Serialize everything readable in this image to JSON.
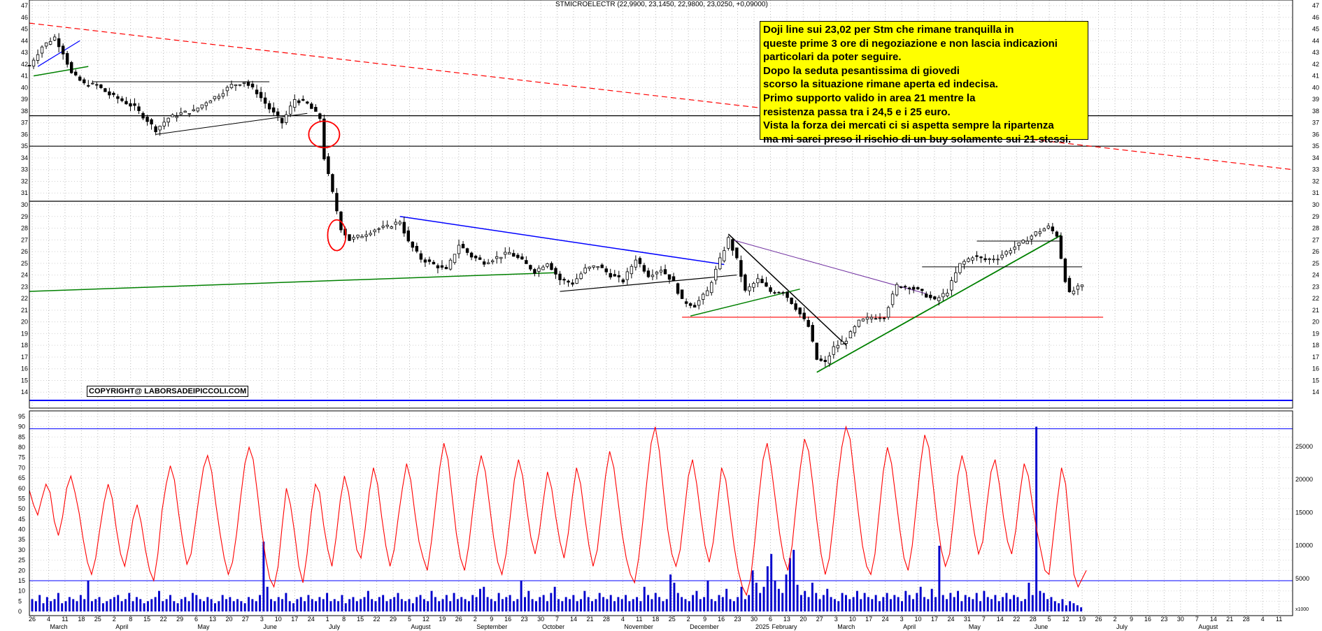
{
  "chart_data": [
    {
      "type": "candlestick",
      "title": "STMICROELECTR (22,9900, 23,1450, 22,9800, 23,0250, +0,09000)",
      "ylim": [
        13,
        47
      ],
      "y_ticks": [
        14,
        15,
        16,
        17,
        18,
        19,
        20,
        21,
        22,
        23,
        24,
        25,
        26,
        27,
        28,
        29,
        30,
        31,
        32,
        33,
        34,
        35,
        36,
        37,
        38,
        39,
        40,
        41,
        42,
        43,
        44,
        45,
        46,
        47
      ],
      "x_day_labels": [
        "26",
        "4",
        "11",
        "18",
        "25",
        "2",
        "8",
        "15",
        "22",
        "29",
        "6",
        "13",
        "20",
        "27",
        "3",
        "10",
        "17",
        "24",
        "1",
        "8",
        "15",
        "22",
        "29",
        "5",
        "12",
        "19",
        "26",
        "2",
        "9",
        "16",
        "23",
        "30",
        "7",
        "14",
        "21",
        "28",
        "4",
        "11",
        "18",
        "25",
        "2",
        "9",
        "16",
        "23",
        "30",
        "6",
        "13",
        "20",
        "27",
        "3",
        "10",
        "17",
        "24",
        "3",
        "10",
        "17",
        "24",
        "31",
        "7",
        "14",
        "22",
        "28",
        "5",
        "12",
        "19",
        "26",
        "2",
        "9",
        "16",
        "23",
        "30",
        "7",
        "14",
        "21",
        "28",
        "4",
        "11"
      ],
      "x_month_labels": [
        "March",
        "April",
        "May",
        "June",
        "July",
        "August",
        "September",
        "October",
        "November",
        "December",
        "2025",
        "February",
        "March",
        "April",
        "May",
        "June",
        "July",
        "August"
      ],
      "horizontal_levels": [
        {
          "value": 37.6,
          "color": "#000000"
        },
        {
          "value": 35.0,
          "color": "#000000"
        },
        {
          "value": 30.3,
          "color": "#000000"
        },
        {
          "value": 20.4,
          "color": "#ff0000"
        },
        {
          "value": 13.3,
          "color": "#0000ff"
        }
      ],
      "price_path": [
        {
          "x": 0,
          "y": 41.9
        },
        {
          "x": 3,
          "y": 43.5
        },
        {
          "x": 6,
          "y": 44.3
        },
        {
          "x": 8,
          "y": 43.0
        },
        {
          "x": 10,
          "y": 41.2
        },
        {
          "x": 13,
          "y": 40.3
        },
        {
          "x": 16,
          "y": 40.2
        },
        {
          "x": 19,
          "y": 39.4
        },
        {
          "x": 22,
          "y": 38.9
        },
        {
          "x": 25,
          "y": 38.3
        },
        {
          "x": 28,
          "y": 37.2
        },
        {
          "x": 30,
          "y": 36.4
        },
        {
          "x": 33,
          "y": 37.4
        },
        {
          "x": 36,
          "y": 37.8
        },
        {
          "x": 39,
          "y": 38.0
        },
        {
          "x": 42,
          "y": 38.8
        },
        {
          "x": 45,
          "y": 39.4
        },
        {
          "x": 48,
          "y": 40.2
        },
        {
          "x": 51,
          "y": 40.5
        },
        {
          "x": 54,
          "y": 39.6
        },
        {
          "x": 57,
          "y": 38.2
        },
        {
          "x": 60,
          "y": 37.0
        },
        {
          "x": 63,
          "y": 39.0
        },
        {
          "x": 66,
          "y": 38.6
        },
        {
          "x": 69,
          "y": 37.4
        },
        {
          "x": 70,
          "y": 34.0
        },
        {
          "x": 72,
          "y": 31.0
        },
        {
          "x": 74,
          "y": 28.0
        },
        {
          "x": 76,
          "y": 27.0
        },
        {
          "x": 79,
          "y": 27.4
        },
        {
          "x": 82,
          "y": 27.9
        },
        {
          "x": 85,
          "y": 28.1
        },
        {
          "x": 88,
          "y": 28.6
        },
        {
          "x": 90,
          "y": 26.8
        },
        {
          "x": 93,
          "y": 25.4
        },
        {
          "x": 96,
          "y": 24.9
        },
        {
          "x": 99,
          "y": 24.4
        },
        {
          "x": 102,
          "y": 26.6
        },
        {
          "x": 105,
          "y": 25.6
        },
        {
          "x": 108,
          "y": 25.1
        },
        {
          "x": 111,
          "y": 25.5
        },
        {
          "x": 114,
          "y": 25.9
        },
        {
          "x": 117,
          "y": 25.2
        },
        {
          "x": 120,
          "y": 24.3
        },
        {
          "x": 123,
          "y": 25.1
        },
        {
          "x": 126,
          "y": 23.6
        },
        {
          "x": 129,
          "y": 23.3
        },
        {
          "x": 132,
          "y": 24.5
        },
        {
          "x": 135,
          "y": 24.8
        },
        {
          "x": 138,
          "y": 24.0
        },
        {
          "x": 141,
          "y": 23.5
        },
        {
          "x": 144,
          "y": 25.4
        },
        {
          "x": 147,
          "y": 24.0
        },
        {
          "x": 150,
          "y": 24.5
        },
        {
          "x": 153,
          "y": 23.4
        },
        {
          "x": 155,
          "y": 21.8
        },
        {
          "x": 158,
          "y": 21.4
        },
        {
          "x": 161,
          "y": 22.6
        },
        {
          "x": 164,
          "y": 25.3
        },
        {
          "x": 166,
          "y": 27.1
        },
        {
          "x": 168,
          "y": 25.3
        },
        {
          "x": 170,
          "y": 22.6
        },
        {
          "x": 173,
          "y": 23.6
        },
        {
          "x": 176,
          "y": 22.6
        },
        {
          "x": 179,
          "y": 22.6
        },
        {
          "x": 182,
          "y": 21.2
        },
        {
          "x": 185,
          "y": 19.6
        },
        {
          "x": 187,
          "y": 16.8
        },
        {
          "x": 189,
          "y": 16.5
        },
        {
          "x": 191,
          "y": 17.8
        },
        {
          "x": 194,
          "y": 18.5
        },
        {
          "x": 197,
          "y": 20.0
        },
        {
          "x": 200,
          "y": 20.4
        },
        {
          "x": 203,
          "y": 20.5
        },
        {
          "x": 206,
          "y": 23.1
        },
        {
          "x": 209,
          "y": 23.0
        },
        {
          "x": 212,
          "y": 22.5
        },
        {
          "x": 215,
          "y": 21.8
        },
        {
          "x": 218,
          "y": 22.6
        },
        {
          "x": 221,
          "y": 24.9
        },
        {
          "x": 224,
          "y": 25.6
        },
        {
          "x": 227,
          "y": 25.3
        },
        {
          "x": 230,
          "y": 25.5
        },
        {
          "x": 233,
          "y": 26.2
        },
        {
          "x": 236,
          "y": 26.8
        },
        {
          "x": 239,
          "y": 27.6
        },
        {
          "x": 242,
          "y": 28.1
        },
        {
          "x": 244,
          "y": 27.4
        },
        {
          "x": 246,
          "y": 23.6
        },
        {
          "x": 247,
          "y": 22.4
        },
        {
          "x": 249,
          "y": 22.9
        },
        {
          "x": 250,
          "y": 23.0
        }
      ],
      "x_range": [
        0,
        300
      ],
      "volume_bars": [
        6,
        5,
        8,
        4,
        7,
        5,
        6,
        9,
        4,
        5,
        7,
        6,
        5,
        8,
        6,
        15,
        5,
        6,
        7,
        4,
        5,
        6,
        7,
        8,
        5,
        6,
        9,
        5,
        7,
        6,
        4,
        5,
        6,
        7,
        10,
        5,
        6,
        8,
        5,
        4,
        6,
        7,
        5,
        9,
        8,
        6,
        5,
        7,
        6,
        4,
        5,
        8,
        6,
        7,
        5,
        6,
        5,
        4,
        7,
        6,
        5,
        8,
        34,
        12,
        6,
        5,
        7,
        6,
        9,
        5,
        4,
        6,
        7,
        5,
        8,
        6,
        5,
        7,
        6,
        9,
        5,
        6,
        5,
        8,
        4,
        6,
        7,
        5,
        6,
        7,
        10,
        6,
        5,
        7,
        8,
        5,
        6,
        7,
        9,
        6,
        5,
        6,
        4,
        7,
        8,
        6,
        5,
        10,
        7,
        5,
        6,
        8,
        5,
        9,
        6,
        7,
        6,
        5,
        8,
        7,
        11,
        12,
        7,
        6,
        5,
        9,
        6,
        7,
        8,
        5,
        6,
        15,
        7,
        10,
        6,
        5,
        7,
        8,
        5,
        9,
        12,
        6,
        5,
        7,
        6,
        8,
        5,
        6,
        10,
        7,
        5,
        6,
        9,
        7,
        6,
        8,
        5,
        7,
        6,
        8,
        5,
        6,
        7,
        5,
        12,
        8,
        6,
        9,
        7,
        5,
        6,
        18,
        14,
        9,
        7,
        6,
        5,
        8,
        10,
        6,
        7,
        15,
        6,
        5,
        8,
        7,
        11,
        6,
        5,
        7,
        12,
        6,
        8,
        20,
        14,
        9,
        12,
        22,
        28,
        15,
        11,
        9,
        18,
        26,
        30,
        13,
        8,
        10,
        7,
        14,
        9,
        6,
        8,
        11,
        7,
        6,
        5,
        9,
        8,
        6,
        7,
        10,
        6,
        9,
        7,
        6,
        8,
        5,
        7,
        9,
        6,
        8,
        7,
        5,
        10,
        8,
        6,
        9,
        12,
        7,
        6,
        11,
        7,
        32,
        8,
        6,
        9,
        7,
        10,
        5,
        8,
        7,
        6,
        9,
        5,
        10,
        7,
        6,
        8,
        5,
        7,
        9,
        6,
        8,
        7,
        5,
        6,
        14,
        8,
        90,
        10,
        9,
        6,
        7,
        5,
        4,
        6,
        3,
        5,
        4,
        3,
        2
      ]
    },
    {
      "type": "line",
      "title": "",
      "ylim": [
        0,
        95
      ],
      "y_ticks": [
        0,
        5,
        10,
        15,
        20,
        25,
        30,
        35,
        40,
        45,
        50,
        55,
        60,
        65,
        70,
        75,
        80,
        85,
        90,
        95
      ],
      "y_right_ticks": [
        5000,
        10000,
        15000,
        20000,
        25000
      ],
      "levels": [
        15,
        89
      ],
      "oscillator": [
        59,
        52,
        47,
        55,
        62,
        58,
        44,
        37,
        46,
        60,
        66,
        58,
        48,
        35,
        24,
        18,
        26,
        40,
        53,
        62,
        55,
        40,
        28,
        22,
        32,
        45,
        52,
        43,
        30,
        20,
        15,
        28,
        49,
        62,
        71,
        64,
        48,
        34,
        23,
        28,
        42,
        57,
        70,
        76,
        68,
        52,
        38,
        26,
        18,
        24,
        38,
        56,
        72,
        80,
        74,
        58,
        40,
        26,
        16,
        12,
        22,
        42,
        60,
        52,
        38,
        22,
        14,
        28,
        48,
        62,
        58,
        42,
        30,
        22,
        36,
        54,
        66,
        58,
        44,
        30,
        26,
        40,
        58,
        70,
        62,
        46,
        32,
        22,
        30,
        46,
        60,
        72,
        64,
        48,
        34,
        26,
        20,
        34,
        52,
        70,
        82,
        74,
        56,
        38,
        26,
        20,
        32,
        50,
        66,
        76,
        68,
        52,
        36,
        24,
        18,
        28,
        46,
        64,
        74,
        66,
        50,
        36,
        28,
        38,
        54,
        68,
        60,
        46,
        34,
        26,
        38,
        56,
        70,
        62,
        46,
        32,
        22,
        30,
        48,
        66,
        78,
        70,
        54,
        38,
        26,
        18,
        14,
        26,
        44,
        64,
        82,
        90,
        78,
        58,
        40,
        28,
        22,
        30,
        48,
        66,
        74,
        62,
        46,
        32,
        24,
        34,
        52,
        70,
        64,
        48,
        32,
        20,
        12,
        8,
        16,
        34,
        56,
        74,
        82,
        70,
        54,
        38,
        26,
        20,
        32,
        52,
        70,
        84,
        78,
        62,
        44,
        28,
        18,
        26,
        44,
        64,
        80,
        90,
        84,
        66,
        48,
        32,
        22,
        18,
        28,
        48,
        68,
        80,
        72,
        56,
        40,
        26,
        20,
        32,
        52,
        72,
        86,
        80,
        62,
        44,
        30,
        22,
        28,
        46,
        66,
        76,
        68,
        52,
        38,
        28,
        34,
        52,
        68,
        74,
        62,
        46,
        34,
        28,
        40,
        58,
        72,
        66,
        52,
        40,
        30,
        20,
        18,
        36,
        54,
        70,
        62,
        40,
        18,
        12,
        16,
        20
      ]
    }
  ],
  "note": {
    "lines": [
      "Doji line sui 23,02  per Stm che rimane tranquilla in",
      "queste prime 3 ore di negoziazione e non lascia indicazioni",
      "particolari da poter seguire.",
      "Dopo la seduta pesantissima di giovedi",
      "scorso la situazione  rimane aperta ed indecisa.",
      "Primo supporto valido in area 21 mentre la",
      "resistenza passa tra i 24,5 e i 25 euro.",
      "Vista la forza dei mercati ci si aspetta sempre la ripartenza",
      "ma mi sarei preso il rischio di un buy solamente sui 21 stessi."
    ]
  },
  "copyright": "COPYRIGHT@ LABORSADEIPICCOLI.COM",
  "scale_tag": "x1000",
  "colors": {
    "candle_up": "#ffffff",
    "candle_down": "#000000",
    "oscillator": "#ff0000",
    "volume": "#0000cc",
    "trend_red_dashed": "#ff0000",
    "trend_blue": "#0000ff",
    "trend_green": "#008000",
    "trend_purple": "#7030a0",
    "note_bg": "#ffff00"
  }
}
